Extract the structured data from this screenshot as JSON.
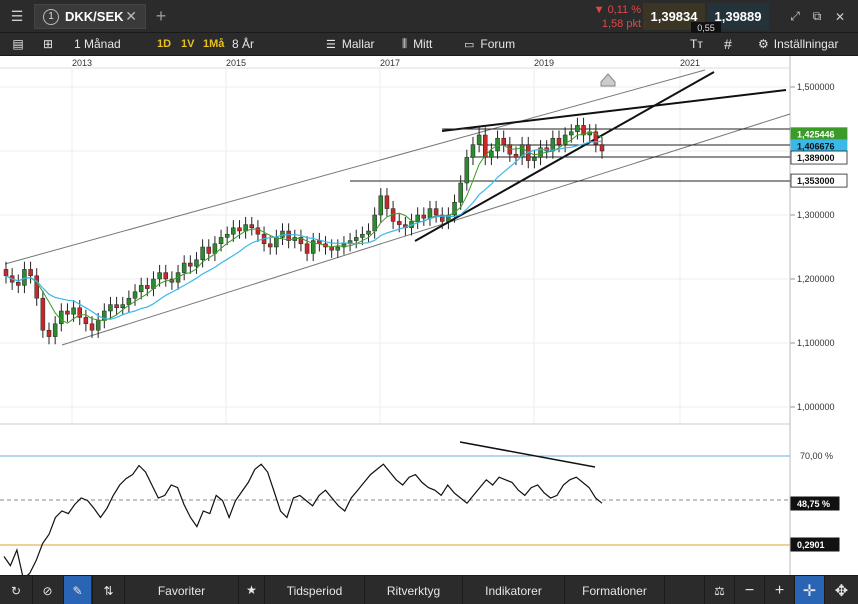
{
  "topbar": {
    "symbol": "DKK/SEK",
    "symbol_index": "1",
    "change_pct": "▼ 0,11 %",
    "change_pts": "1,58 pkt",
    "bid": "1,39834",
    "ask": "1,39889",
    "spread": "0,55"
  },
  "toolbar": {
    "period": "1 Månad",
    "res_1d": "1D",
    "res_1v": "1V",
    "res_1ma": "1Må",
    "range": "8 År",
    "templates": "Mallar",
    "mine": "Mitt",
    "forum": "Forum",
    "settings": "Inställningar",
    "text_tool": "Tт"
  },
  "bottombar": {
    "favorites": "Favoriter",
    "timeperiod": "Tidsperiod",
    "drawtools": "Ritverktyg",
    "indicators": "Indikatorer",
    "formations": "Formationer"
  },
  "colors": {
    "green_label": "#3c9a2a",
    "blue_label": "#3ab8e8",
    "sma_green": "#3c9a2a",
    "sma_blue": "#3ab8e8",
    "up": "#2e8a2e",
    "down": "#c8282a",
    "osc_upper": "#6aaed6",
    "osc_lower": "#e0a030"
  },
  "chart_data": [
    {
      "type": "candlestick",
      "x_ticks": [
        "2013",
        "2015",
        "2017",
        "2019",
        "2021"
      ],
      "y_ticks": [
        "1,500000",
        "1,400000",
        "1,300000",
        "1,200000",
        "1,100000",
        "1,000000"
      ],
      "ylim": [
        0.96,
        1.53
      ],
      "price_labels": [
        "1,425446",
        "1,406676",
        "1,389000",
        "1,353000"
      ],
      "horizontal_levels": [
        1.4254,
        1.4067,
        1.389,
        1.353
      ]
    },
    {
      "type": "line",
      "y_ticks": [
        "70,00 %"
      ],
      "current_label": "48,75 %",
      "lower_label": "0,2901",
      "upper_level": 70,
      "current_value": 48.75
    }
  ]
}
